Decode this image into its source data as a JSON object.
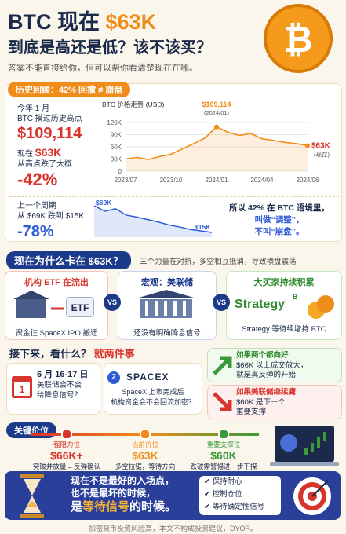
{
  "header": {
    "title_prefix": "BTC 现在",
    "title_price": "$63K",
    "subtitle": "到底是高还是低？该不该买？",
    "tagline": "答案不能直接给你，但可以帮你看清楚现在在哪。",
    "coin_symbol": "₿"
  },
  "history": {
    "label": "历史回顾：42% 回撤 ≠ 崩盘",
    "month": "今年 1 月",
    "ath_text": "BTC 摸过历史高点",
    "ath": "$109,114",
    "now_label": "现在",
    "now_price": "$63K",
    "drop_text": "从高点跌了大概",
    "drop": "-42%",
    "prev_label": "上一个周期",
    "prev_text": "从 $69K 跌到 $15K",
    "prev_drop": "-78%",
    "note": [
      "所以 42% 在 BTC 语境里，",
      "叫做“调整”，",
      "不叫“崩盘”。"
    ]
  },
  "chart_data": [
    {
      "type": "line",
      "title": "BTC 价格走势 (USD)",
      "categories": [
        "2023/07",
        null,
        null,
        null,
        "2023/10",
        null,
        null,
        null,
        "2024/01",
        null,
        null,
        null,
        "2024/04",
        null,
        null,
        null,
        "2024/06"
      ],
      "values": [
        30000,
        34000,
        29000,
        36000,
        42000,
        55000,
        68000,
        82000,
        109114,
        96000,
        88000,
        93000,
        80000,
        76000,
        71000,
        68000,
        63000
      ],
      "color": "#f08c1a",
      "ylim": [
        0,
        120000
      ],
      "yticks": [
        0,
        {
          "value": 30000,
          "label": "30K"
        },
        {
          "value": 60000,
          "label": "60K"
        },
        {
          "value": 90000,
          "label": "90K"
        },
        {
          "value": 120000,
          "label": "120K"
        }
      ],
      "grid": true,
      "peak_label": "$109,114",
      "peak_date": "(2024/01)",
      "end_label": "$63K",
      "end_note": "(现在)"
    },
    {
      "type": "line",
      "values": [
        69000,
        58000,
        63000,
        50000,
        46000,
        41000,
        36000,
        30000,
        26000,
        21000,
        18000,
        15000
      ],
      "color": "#2e5bd6",
      "start_label": "$69K",
      "end_label": "$15K"
    }
  ],
  "forces": {
    "heading": "现在为什么卡在 $63K？",
    "sub": "三个力量在对抗，多空相互抵消，导致横盘震荡",
    "vs": "VS",
    "cards": [
      {
        "title": "机构 ETF 在流出",
        "icon_text": "ETF",
        "desc": "资金往 SpaceX IPO 搬迁"
      },
      {
        "title": "宏观：美联储",
        "desc": "还没有明确降息信号"
      },
      {
        "title": "大买家持续积累",
        "icon_text": "Strategy",
        "icon_sup": "B",
        "desc": "Strategy 等待续增持 BTC"
      }
    ]
  },
  "next": {
    "heading": "接下来，看什么？",
    "heading_hl": "就两件事",
    "items": [
      {
        "num": "1",
        "date": "6 月 16-17 日",
        "lines": [
          "美联储会不会",
          "给降息信号？"
        ]
      },
      {
        "num": "2",
        "logo": "SPACEX",
        "lines": [
          "SpaceX 上市完成后",
          "机构资金会不会回流加密？"
        ]
      }
    ],
    "outcomes": [
      {
        "title": "如果两个都向好",
        "lines": [
          "$66K 以上成交放大，",
          "就是真反弹的开始"
        ]
      },
      {
        "title": "如果美联储继续鹰",
        "lines": [
          "$60K 是下一个",
          "重要支撑"
        ]
      }
    ]
  },
  "levels": {
    "label": "关键价位",
    "items": [
      {
        "name": "强阻力位",
        "price": "$66K+",
        "desc": "突破并放量 = 反弹确认"
      },
      {
        "name": "当前价位",
        "price": "$63K",
        "desc": "多空拉锯，等待方向"
      },
      {
        "name": "重要支撑位",
        "price": "$60K",
        "desc": "跌破需警惕进一步下探"
      }
    ]
  },
  "conclusion": {
    "lines": [
      "现在不是最好的入场点，",
      "也不是最坏的时候，"
    ],
    "last_pre": "是",
    "last_hl": "等待信号",
    "last_post": "的时候。",
    "checklist": [
      "保持耐心",
      "控制仓位",
      "等待确定性信号"
    ]
  },
  "footer": "加密货币投资风险高，本文不构成投资建议，DYOR。"
}
